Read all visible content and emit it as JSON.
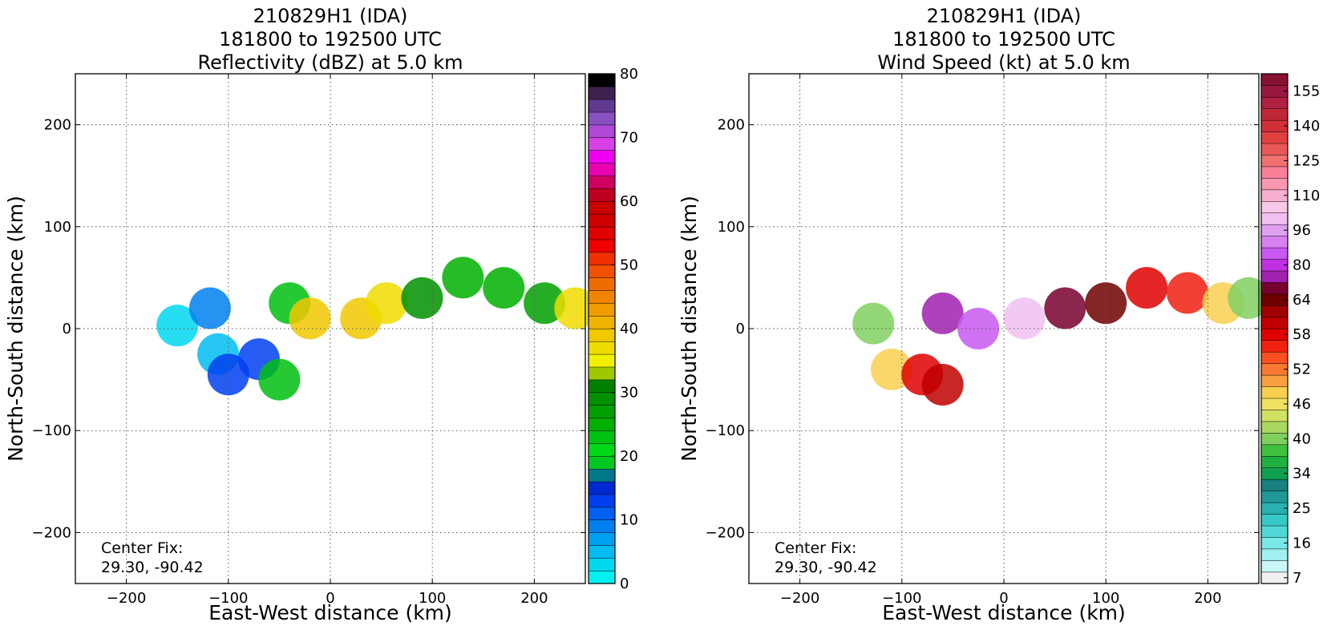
{
  "chart_data": [
    {
      "type": "heatmap",
      "id": "reflectivity",
      "title_lines": [
        "210829H1 (IDA)",
        "181800 to 192500 UTC",
        "Reflectivity (dBZ) at 5.0 km"
      ],
      "xlabel": "East-West distance (km)",
      "ylabel": "North-South distance (km)",
      "xlim": [
        -250,
        250
      ],
      "ylim": [
        -250,
        250
      ],
      "xticks": [
        -200,
        -100,
        0,
        100,
        200
      ],
      "yticks": [
        -200,
        -100,
        0,
        100,
        200
      ],
      "xtick_labels": [
        "−200",
        "−100",
        "0",
        "100",
        "200"
      ],
      "ytick_labels": [
        "−200",
        "−100",
        "0",
        "100",
        "200"
      ],
      "grid": true,
      "annotation_lines": [
        "Center Fix:",
        "29.30, -90.42"
      ],
      "colorbar": {
        "min": 0,
        "max": 80,
        "tick_values": [
          0,
          10,
          20,
          30,
          40,
          50,
          60,
          70,
          80
        ],
        "tick_labels": [
          "0",
          "10",
          "20",
          "30",
          "40",
          "50",
          "60",
          "70",
          "80"
        ],
        "colors": [
          "#00f0f0",
          "#00d8f0",
          "#00bcf0",
          "#00a0f0",
          "#0080f0",
          "#0060f0",
          "#0040f0",
          "#0028d0",
          "#00788c",
          "#00c820",
          "#00d818",
          "#00c010",
          "#00b000",
          "#00a000",
          "#009000",
          "#008000",
          "#a0c800",
          "#f0f000",
          "#f0dc00",
          "#f0c800",
          "#f0b400",
          "#f09c00",
          "#f08400",
          "#f06c00",
          "#f05000",
          "#f03000",
          "#f00000",
          "#e00000",
          "#d00000",
          "#c80000",
          "#c00020",
          "#d00060",
          "#e800b0",
          "#f000f0",
          "#d840e8",
          "#b048d8",
          "#8850c0",
          "#603890",
          "#402050",
          "#000000"
        ]
      },
      "storm_field": [
        {
          "x": -150,
          "y": 3,
          "dbz": 3
        },
        {
          "x": -118,
          "y": 20,
          "dbz": 8
        },
        {
          "x": -110,
          "y": -25,
          "dbz": 5
        },
        {
          "x": -100,
          "y": -45,
          "dbz": 12
        },
        {
          "x": -70,
          "y": -30,
          "dbz": 12
        },
        {
          "x": -50,
          "y": -50,
          "dbz": 22
        },
        {
          "x": -40,
          "y": 25,
          "dbz": 22
        },
        {
          "x": -20,
          "y": 10,
          "dbz": 38
        },
        {
          "x": 30,
          "y": 10,
          "dbz": 38
        },
        {
          "x": 55,
          "y": 25,
          "dbz": 37
        },
        {
          "x": 90,
          "y": 30,
          "dbz": 28
        },
        {
          "x": 130,
          "y": 50,
          "dbz": 25
        },
        {
          "x": 170,
          "y": 40,
          "dbz": 24
        },
        {
          "x": 210,
          "y": 25,
          "dbz": 27
        },
        {
          "x": 240,
          "y": 20,
          "dbz": 36
        }
      ]
    },
    {
      "type": "heatmap",
      "id": "wind_speed",
      "title_lines": [
        "210829H1 (IDA)",
        "181800 to 192500 UTC",
        "Wind Speed (kt) at 5.0 km"
      ],
      "xlabel": "East-West distance (km)",
      "ylabel": "North-South distance (km)",
      "xlim": [
        -250,
        250
      ],
      "ylim": [
        -250,
        250
      ],
      "xticks": [
        -200,
        -100,
        0,
        100,
        200
      ],
      "yticks": [
        -200,
        -100,
        0,
        100,
        200
      ],
      "xtick_labels": [
        "−200",
        "−100",
        "0",
        "100",
        "200"
      ],
      "ytick_labels": [
        "−200",
        "−100",
        "0",
        "100",
        "200"
      ],
      "grid": true,
      "annotation_lines": [
        "Center Fix:",
        "29.30, -90.42"
      ],
      "colorbar": {
        "tick_labels": [
          "7",
          "16",
          "25",
          "34",
          "40",
          "46",
          "52",
          "58",
          "64",
          "80",
          "96",
          "110",
          "125",
          "140",
          "155"
        ],
        "tick_levels": [
          0.5,
          3.5,
          6.5,
          9.5,
          12.5,
          15.5,
          18.5,
          21.5,
          24.5,
          27.5,
          30.5,
          33.5,
          36.5,
          39.5,
          42.5
        ],
        "colors": [
          "#f0f0f0",
          "#c8f8f8",
          "#a0f0f0",
          "#78e8e8",
          "#50d8d8",
          "#38c8c8",
          "#28b0b0",
          "#209898",
          "#188080",
          "#10a050",
          "#20b040",
          "#40c040",
          "#80d060",
          "#a8d860",
          "#d0e060",
          "#f0e060",
          "#f8d050",
          "#f8a040",
          "#f87830",
          "#f85020",
          "#f02010",
          "#e00000",
          "#c00000",
          "#a00000",
          "#700000",
          "#780030",
          "#a020b0",
          "#c030e0",
          "#c858f0",
          "#d880f0",
          "#e0a0f0",
          "#f0c0f0",
          "#f8c8e8",
          "#f8b0d0",
          "#f898b0",
          "#f88098",
          "#f07070",
          "#e85858",
          "#e04040",
          "#d03038",
          "#c02838",
          "#b02040",
          "#981840",
          "#881030"
        ]
      },
      "storm_field": [
        {
          "x": -128,
          "y": 5,
          "kt": 40
        },
        {
          "x": -110,
          "y": -40,
          "kt": 47
        },
        {
          "x": -80,
          "y": -45,
          "kt": 58
        },
        {
          "x": -60,
          "y": -55,
          "kt": 60
        },
        {
          "x": -60,
          "y": 15,
          "kt": 72
        },
        {
          "x": -25,
          "y": 0,
          "kt": 86
        },
        {
          "x": 20,
          "y": 10,
          "kt": 100
        },
        {
          "x": 60,
          "y": 20,
          "kt": 70
        },
        {
          "x": 100,
          "y": 25,
          "kt": 64
        },
        {
          "x": 140,
          "y": 40,
          "kt": 58
        },
        {
          "x": 180,
          "y": 35,
          "kt": 55
        },
        {
          "x": 215,
          "y": 25,
          "kt": 48
        },
        {
          "x": 240,
          "y": 30,
          "kt": 40
        }
      ]
    }
  ]
}
